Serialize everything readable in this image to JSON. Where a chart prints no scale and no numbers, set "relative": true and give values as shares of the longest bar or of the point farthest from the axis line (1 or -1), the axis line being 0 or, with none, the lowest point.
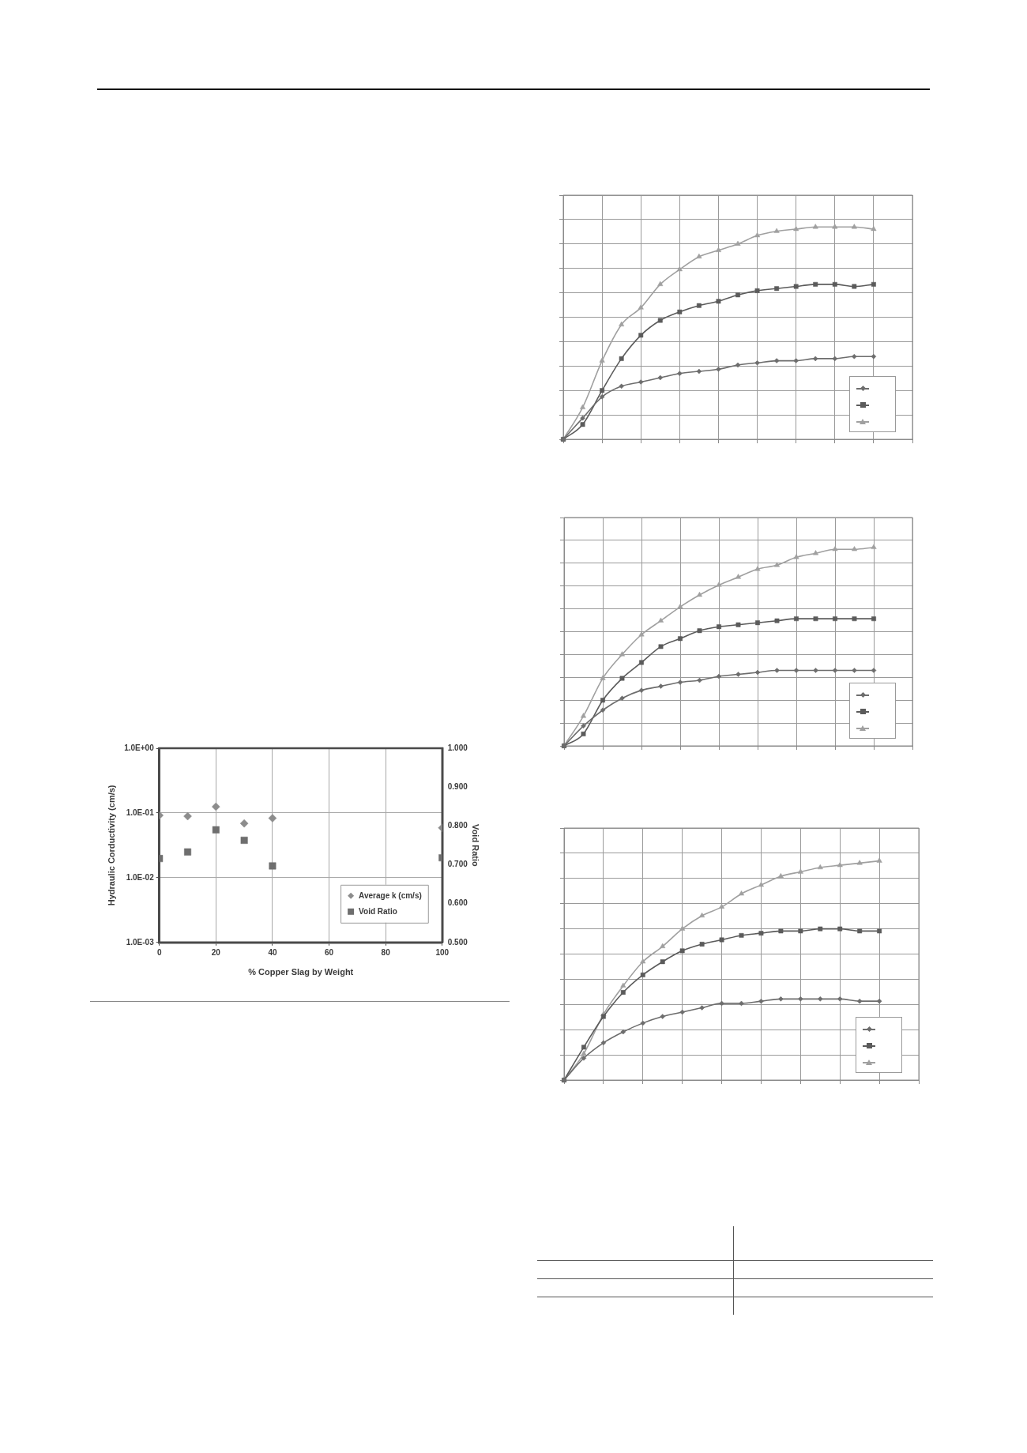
{
  "chart_data": [
    {
      "type": "scatter",
      "xlabel": "% Copper Slag by Weight",
      "ylabel": "Hydraulic Corductivity (cm/s)",
      "y2label": "Void Ratio",
      "x": [
        0,
        10,
        20,
        30,
        40,
        100
      ],
      "series": [
        {
          "name": "Average k (cm/s)",
          "color": "#8c8c8c",
          "marker": "diamond",
          "values": [
            0.092,
            0.089,
            0.125,
            0.069,
            0.083,
            0.059
          ]
        },
        {
          "name": "Void Ratio",
          "color": "#6e6e6e",
          "marker": "square",
          "axis": "y2",
          "values": [
            0.716,
            0.733,
            0.79,
            0.763,
            0.697,
            0.718
          ]
        }
      ],
      "xlim": [
        0,
        100
      ],
      "xticks": [
        0,
        20,
        40,
        60,
        80,
        100
      ],
      "log": "y",
      "ylim": [
        0.001,
        1
      ],
      "yticks": [
        {
          "value": 0.001,
          "label": "1.0E-03"
        },
        {
          "value": 0.01,
          "label": "1.0E-02"
        },
        {
          "value": 0.1,
          "label": "1.0E-01"
        },
        {
          "value": 1,
          "label": "1.0E+00"
        }
      ],
      "y2lim": [
        0.5,
        1
      ],
      "y2ticks": [
        {
          "value": 0.5,
          "label": "0.500"
        },
        {
          "value": 0.6,
          "label": "0.600"
        },
        {
          "value": 0.7,
          "label": "0.700"
        },
        {
          "value": 0.8,
          "label": "0.800"
        },
        {
          "value": 0.9,
          "label": "0.900"
        },
        {
          "value": 1,
          "label": "1.000"
        }
      ],
      "grid": true,
      "legend": "bottom right"
    },
    {
      "type": "line",
      "relative": true,
      "tick_labels": false,
      "grid": true,
      "legend": "bottom right",
      "categories": [
        null,
        null,
        null,
        null,
        null,
        null,
        null,
        null,
        null,
        null,
        null,
        null,
        null,
        null,
        null,
        null,
        null,
        null,
        null
      ],
      "series": [
        {
          "color": "#6d6d6d",
          "marker": "diamond",
          "values": [
            0,
            0.1,
            0.2,
            0.25,
            0.27,
            0.29,
            0.31,
            0.32,
            0.33,
            0.35,
            0.36,
            0.37,
            0.37,
            0.38,
            0.38,
            0.39,
            0.39,
            null,
            null
          ]
        },
        {
          "color": "#5b5b5b",
          "marker": "square",
          "values": [
            0,
            0.07,
            0.23,
            0.38,
            0.49,
            0.56,
            0.6,
            0.63,
            0.65,
            0.68,
            0.7,
            0.71,
            0.72,
            0.73,
            0.73,
            0.72,
            0.73,
            null,
            null
          ]
        },
        {
          "color": "#a0a0a0",
          "marker": "triangle",
          "values": [
            0,
            0.15,
            0.37,
            0.54,
            0.62,
            0.73,
            0.8,
            0.86,
            0.89,
            0.92,
            0.96,
            0.98,
            0.99,
            1,
            1,
            1,
            0.99,
            null,
            null
          ]
        }
      ]
    },
    {
      "type": "line",
      "relative": true,
      "tick_labels": false,
      "grid": true,
      "legend": "bottom right",
      "categories": [
        null,
        null,
        null,
        null,
        null,
        null,
        null,
        null,
        null,
        null,
        null,
        null,
        null,
        null,
        null,
        null,
        null,
        null,
        null
      ],
      "series": [
        {
          "color": "#6d6d6d",
          "marker": "diamond",
          "values": [
            0,
            0.1,
            0.18,
            0.24,
            0.28,
            0.3,
            0.32,
            0.33,
            0.35,
            0.36,
            0.37,
            0.38,
            0.38,
            0.38,
            0.38,
            0.38,
            0.38,
            null,
            null
          ]
        },
        {
          "color": "#5b5b5b",
          "marker": "square",
          "values": [
            0,
            0.06,
            0.23,
            0.34,
            0.42,
            0.5,
            0.54,
            0.58,
            0.6,
            0.61,
            0.62,
            0.63,
            0.64,
            0.64,
            0.64,
            0.64,
            0.64,
            null,
            null
          ]
        },
        {
          "color": "#a0a0a0",
          "marker": "triangle",
          "values": [
            0,
            0.15,
            0.34,
            0.46,
            0.56,
            0.63,
            0.7,
            0.76,
            0.81,
            0.85,
            0.89,
            0.91,
            0.95,
            0.97,
            0.99,
            0.99,
            1,
            null,
            null
          ]
        }
      ]
    },
    {
      "type": "line",
      "relative": true,
      "tick_labels": false,
      "grid": true,
      "legend": "bottom right",
      "categories": [
        null,
        null,
        null,
        null,
        null,
        null,
        null,
        null,
        null,
        null,
        null,
        null,
        null,
        null,
        null,
        null,
        null,
        null,
        null
      ],
      "series": [
        {
          "color": "#6d6d6d",
          "marker": "diamond",
          "values": [
            0,
            0.1,
            0.17,
            0.22,
            0.26,
            0.29,
            0.31,
            0.33,
            0.35,
            0.35,
            0.36,
            0.37,
            0.37,
            0.37,
            0.37,
            0.36,
            0.36,
            null,
            null
          ]
        },
        {
          "color": "#5b5b5b",
          "marker": "square",
          "values": [
            0,
            0.15,
            0.29,
            0.4,
            0.48,
            0.54,
            0.59,
            0.62,
            0.64,
            0.66,
            0.67,
            0.68,
            0.68,
            0.69,
            0.69,
            0.68,
            0.68,
            null,
            null
          ]
        },
        {
          "color": "#a0a0a0",
          "marker": "triangle",
          "values": [
            0,
            0.12,
            0.3,
            0.43,
            0.54,
            0.61,
            0.69,
            0.75,
            0.79,
            0.85,
            0.89,
            0.93,
            0.95,
            0.97,
            0.98,
            0.99,
            1,
            null,
            null
          ]
        }
      ]
    }
  ]
}
